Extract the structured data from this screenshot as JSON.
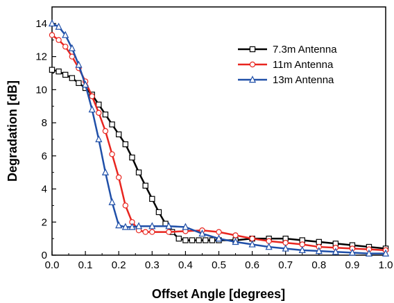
{
  "chart_data": {
    "type": "line",
    "xlabel": "Offset Angle [degrees]",
    "ylabel": "Degradation [dB]",
    "xlim": [
      0.0,
      1.0
    ],
    "ylim": [
      0,
      15
    ],
    "xticks": [
      "0.0",
      "0.1",
      "0.2",
      "0.3",
      "0.4",
      "0.5",
      "0.6",
      "0.7",
      "0.8",
      "0.9",
      "1.0"
    ],
    "yticks": [
      "0",
      "2",
      "4",
      "6",
      "8",
      "10",
      "12",
      "14"
    ],
    "legend_position": "top-right",
    "grid": false,
    "series": [
      {
        "name": "7.3m Antenna",
        "color": "#000000",
        "marker": "square",
        "x": [
          0.0,
          0.02,
          0.04,
          0.06,
          0.08,
          0.1,
          0.12,
          0.14,
          0.16,
          0.18,
          0.2,
          0.22,
          0.24,
          0.26,
          0.28,
          0.3,
          0.32,
          0.34,
          0.36,
          0.38,
          0.4,
          0.42,
          0.44,
          0.46,
          0.48,
          0.5,
          0.55,
          0.6,
          0.65,
          0.7,
          0.75,
          0.8,
          0.85,
          0.9,
          0.95,
          1.0
        ],
        "y": [
          11.2,
          11.1,
          10.9,
          10.7,
          10.4,
          10.1,
          9.7,
          9.1,
          8.5,
          7.9,
          7.3,
          6.7,
          5.9,
          5.0,
          4.2,
          3.4,
          2.6,
          1.9,
          1.4,
          1.0,
          0.9,
          0.9,
          0.9,
          0.9,
          0.9,
          0.9,
          0.9,
          1.0,
          1.0,
          1.0,
          0.9,
          0.8,
          0.7,
          0.6,
          0.5,
          0.4
        ]
      },
      {
        "name": "11m Antenna",
        "color": "#e8251f",
        "marker": "circle",
        "x": [
          0.0,
          0.02,
          0.04,
          0.06,
          0.08,
          0.1,
          0.12,
          0.14,
          0.16,
          0.18,
          0.2,
          0.22,
          0.24,
          0.26,
          0.28,
          0.3,
          0.35,
          0.4,
          0.45,
          0.5,
          0.55,
          0.6,
          0.65,
          0.7,
          0.75,
          0.8,
          0.85,
          0.9,
          0.95,
          1.0
        ],
        "y": [
          13.3,
          13.0,
          12.6,
          12.0,
          11.3,
          10.5,
          9.6,
          8.6,
          7.5,
          6.1,
          4.7,
          3.0,
          2.0,
          1.5,
          1.4,
          1.4,
          1.4,
          1.45,
          1.5,
          1.4,
          1.2,
          1.0,
          0.85,
          0.75,
          0.65,
          0.5,
          0.45,
          0.4,
          0.35,
          0.3
        ]
      },
      {
        "name": "13m Antenna",
        "color": "#1f4fa8",
        "marker": "triangle",
        "x": [
          0.0,
          0.02,
          0.04,
          0.06,
          0.08,
          0.1,
          0.12,
          0.14,
          0.16,
          0.18,
          0.2,
          0.22,
          0.24,
          0.26,
          0.3,
          0.35,
          0.4,
          0.45,
          0.5,
          0.55,
          0.6,
          0.65,
          0.7,
          0.75,
          0.8,
          0.85,
          0.9,
          0.95,
          1.0
        ],
        "y": [
          14.0,
          13.8,
          13.3,
          12.5,
          11.5,
          10.3,
          8.8,
          7.0,
          5.0,
          3.2,
          1.8,
          1.7,
          1.7,
          1.75,
          1.75,
          1.75,
          1.7,
          1.3,
          1.0,
          0.8,
          0.65,
          0.5,
          0.4,
          0.3,
          0.25,
          0.2,
          0.15,
          0.1,
          0.1
        ]
      }
    ]
  }
}
